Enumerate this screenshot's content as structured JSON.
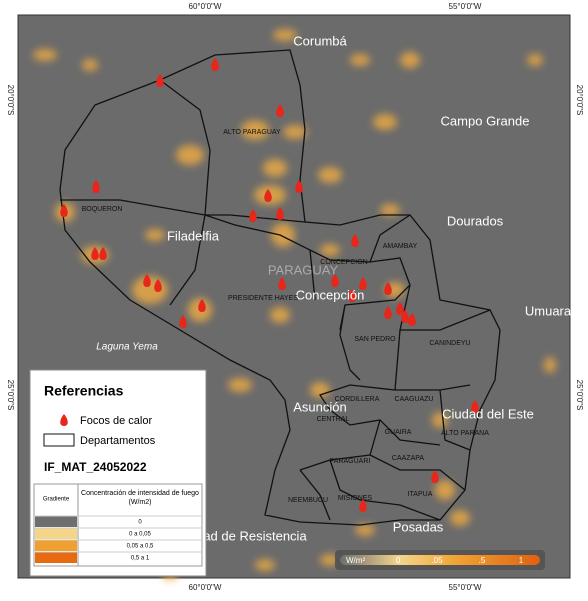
{
  "graticule": {
    "lon": [
      "60°0'0\"W",
      "55°0'0\"W"
    ],
    "lat": [
      "20°0'0\"S",
      "25°0'0\"S"
    ]
  },
  "places": [
    "Corumbá",
    "Campo Grande",
    "Dourados",
    "Umuara",
    "Filadelfia",
    "PARAGUAY",
    "Concepción",
    "Asunción",
    "Ciudad del Este",
    "Posadas",
    "Laguna Yema",
    "ad de Resistencia"
  ],
  "departments": [
    "ALTO PARAGUAY",
    "BOQUERON",
    "PRESIDENTE HAYES",
    "CONCEPCION",
    "AMAMBAY",
    "SAN PEDRO",
    "CANINDEYU",
    "CORDILLERA",
    "CAAGUAZU",
    "CENTRAL",
    "GUAIRA",
    "ALTO PARANA",
    "PARAGUARI",
    "CAAZAPA",
    "NEEMBUCU",
    "MISIONES",
    "ITAPUA"
  ],
  "legend": {
    "title": "Referencias",
    "fires": "Focos de calor",
    "departments": "Departamentos",
    "map_id": "IF_MAT_24052022",
    "table": {
      "header": [
        "Gradiente",
        "Concentración de intensidad de fuego (W/m2)"
      ],
      "rows": [
        "0",
        "0 a 0,05",
        "0,05 a 0,5",
        "0,5 a 1"
      ]
    }
  },
  "colorbar": {
    "unit": "W/m²",
    "labels": [
      "0",
      ".05",
      ".5",
      "1"
    ]
  }
}
